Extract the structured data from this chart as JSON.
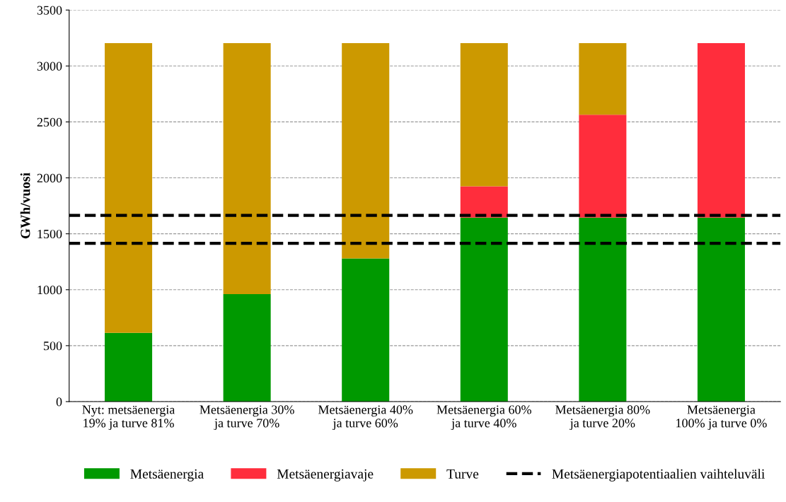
{
  "chart_data": {
    "type": "bar",
    "stacked": true,
    "ylabel": "GWh/vuosi",
    "categories": [
      "Nyt: metsäenergia\n19% ja turve 81%",
      "Metsäenergia 30%\nja turve 70%",
      "Metsäenergia 40%\nja turve 60%",
      "Metsäenergia 60%\nja turve 40%",
      "Metsäenergia 80%\nja turve 20%",
      "Metsäenergia\n100% ja turve 0%"
    ],
    "series": [
      {
        "name": "Metsäenergia",
        "color": "#009900",
        "values": [
          615,
          960,
          1280,
          1645,
          1645,
          1645
        ]
      },
      {
        "name": "Metsäenergiavaje",
        "color": "#ff2d3c",
        "values": [
          0,
          0,
          0,
          280,
          920,
          1560
        ]
      },
      {
        "name": "Turve",
        "color": "#cc9900",
        "values": [
          2590,
          2245,
          1925,
          1280,
          640,
          0
        ]
      }
    ],
    "ref_lines": [
      {
        "axis": "y",
        "value": 1665,
        "label": "Metsäenergiapotentiaalien vaihteluväli",
        "color": "#000000",
        "line_style": "dashed"
      },
      {
        "axis": "y",
        "value": 1415,
        "color": "#000000",
        "line_style": "dashed"
      }
    ],
    "ylim": [
      0,
      3500
    ],
    "yticks": [
      0,
      500,
      1000,
      1500,
      2000,
      2500,
      3000,
      3500
    ],
    "grid": "y",
    "legend": "bottom"
  }
}
